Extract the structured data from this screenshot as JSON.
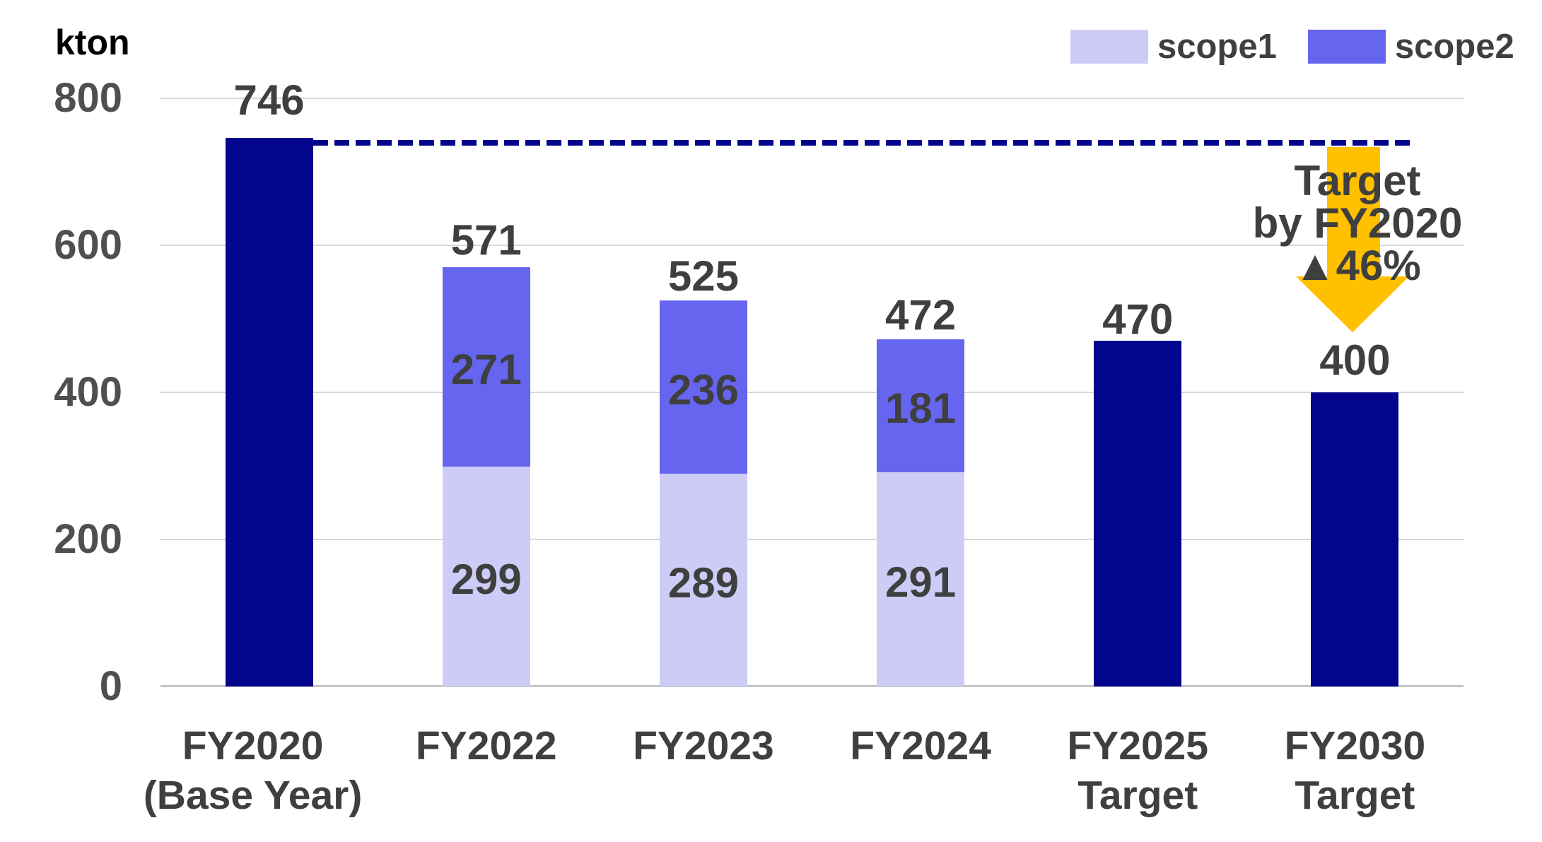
{
  "chart_data": {
    "type": "bar",
    "stacked": true,
    "unit_label": "kton",
    "ylim": [
      0,
      800
    ],
    "yticks": [
      "0",
      "200",
      "400",
      "600",
      "800"
    ],
    "ytick_values": [
      0,
      200,
      400,
      600,
      800
    ],
    "grid": true,
    "legend": {
      "position": "top-right",
      "entries": [
        {
          "label": "scope1",
          "color": "#CCCCF6"
        },
        {
          "label": "scope2",
          "color": "#6565F0"
        }
      ]
    },
    "bars": [
      {
        "category_lines": [
          "FY2020",
          "(Base Year)"
        ],
        "total": 746,
        "total_label": "746",
        "segments": [
          {
            "name": "total",
            "value": 746,
            "label": "",
            "color": "#03058C"
          }
        ]
      },
      {
        "category_lines": [
          "FY2022"
        ],
        "total": 571,
        "total_label": "571",
        "segments": [
          {
            "name": "scope1",
            "value": 299,
            "label": "299",
            "color": "#CCCCF6"
          },
          {
            "name": "scope2",
            "value": 271,
            "label": "271",
            "color": "#6565F0"
          }
        ]
      },
      {
        "category_lines": [
          "FY2023"
        ],
        "total": 525,
        "total_label": "525",
        "segments": [
          {
            "name": "scope1",
            "value": 289,
            "label": "289",
            "color": "#CCCCF6"
          },
          {
            "name": "scope2",
            "value": 236,
            "label": "236",
            "color": "#6565F0"
          }
        ]
      },
      {
        "category_lines": [
          "FY2024"
        ],
        "total": 472,
        "total_label": "472",
        "segments": [
          {
            "name": "scope1",
            "value": 291,
            "label": "291",
            "color": "#CCCCF6"
          },
          {
            "name": "scope2",
            "value": 181,
            "label": "181",
            "color": "#6565F0"
          }
        ]
      },
      {
        "category_lines": [
          "FY2025",
          "Target"
        ],
        "total": 470,
        "total_label": "470",
        "segments": [
          {
            "name": "total",
            "value": 470,
            "label": "",
            "color": "#03058C"
          }
        ]
      },
      {
        "category_lines": [
          "FY2030",
          "Target"
        ],
        "total": 400,
        "total_label": "400",
        "segments": [
          {
            "name": "total",
            "value": 400,
            "label": "",
            "color": "#03058C"
          }
        ]
      }
    ],
    "reference_line": {
      "value": 746,
      "style": "dashed",
      "color": "#03058C"
    },
    "annotation": {
      "lines": [
        "Target",
        "by FY2020",
        "▲46%"
      ],
      "arrow_color": "#FFC000"
    },
    "colors": {
      "navy": "#03058C",
      "scope1": "#CCCCF6",
      "scope2": "#6565F0",
      "arrow_gold": "#FFC000",
      "text": "#3F3F3F",
      "ytick_text": "#4F4F4F",
      "gridline": "#D8D8D8",
      "axis_line": "#C6C6C6",
      "background": "#FFFFFF"
    }
  }
}
